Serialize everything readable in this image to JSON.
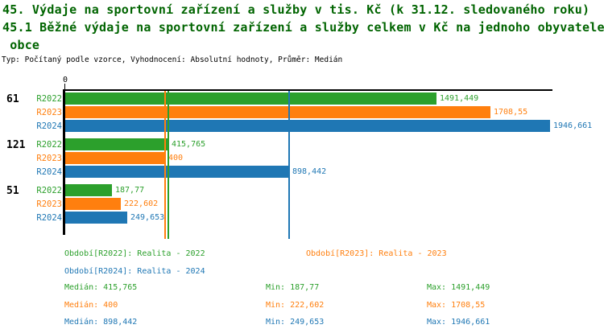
{
  "header": {
    "title_line1": "45. Výdaje na sportovní zařízení a služby v tis. Kč (k 31.12. sledovaného roku)",
    "title_line2": "45.1 Běžné výdaje na sportovní zařízení a služby celkem v Kč na jednoho obyvatele",
    "title_line3": " obce",
    "meta_line": "Typ: Počítaný podle vzorce, Vyhodnocení: Absolutní hodnoty, Průměr: Medián"
  },
  "colors": {
    "title": "#006400",
    "axis": "#000000",
    "series": {
      "R2022": "#2ca02c",
      "R2023": "#ff7f0e",
      "R2024": "#1f77b4"
    }
  },
  "chart_data": {
    "type": "bar",
    "orientation": "horizontal",
    "x_axis": {
      "zero_label": "0",
      "xlim": [
        0,
        1960
      ],
      "grid": false
    },
    "groups": [
      {
        "label": "61",
        "bars": [
          {
            "period": "R2022",
            "value": 1491.449,
            "label": "1491,449"
          },
          {
            "period": "R2023",
            "value": 1708.55,
            "label": "1708,55"
          },
          {
            "period": "R2024",
            "value": 1946.661,
            "label": "1946,661"
          }
        ]
      },
      {
        "label": "121",
        "bars": [
          {
            "period": "R2022",
            "value": 415.765,
            "label": "415,765"
          },
          {
            "period": "R2023",
            "value": 400,
            "label": "400"
          },
          {
            "period": "R2024",
            "value": 898.442,
            "label": "898,442"
          }
        ]
      },
      {
        "label": "51",
        "bars": [
          {
            "period": "R2022",
            "value": 187.77,
            "label": "187,77"
          },
          {
            "period": "R2023",
            "value": 222.602,
            "label": "222,602"
          },
          {
            "period": "R2024",
            "value": 249.653,
            "label": "249,653"
          }
        ]
      }
    ],
    "median_lines": [
      {
        "series": "R2022",
        "value": 415.765
      },
      {
        "series": "R2023",
        "value": 400
      },
      {
        "series": "R2024",
        "value": 898.442
      }
    ]
  },
  "legend": {
    "periods": [
      {
        "series": "R2022",
        "label": "Období[R2022]: Realita - 2022"
      },
      {
        "series": "R2023",
        "label": "Období[R2023]: Realita - 2023"
      },
      {
        "series": "R2024",
        "label": "Období[R2024]: Realita - 2024"
      }
    ],
    "stats": [
      {
        "series": "R2022",
        "median": "Medián: 415,765",
        "min": "Min: 187,77",
        "max": "Max: 1491,449"
      },
      {
        "series": "R2023",
        "median": "Medián: 400",
        "min": "Min: 222,602",
        "max": "Max: 1708,55"
      },
      {
        "series": "R2024",
        "median": "Medián: 898,442",
        "min": "Min: 249,653",
        "max": "Max: 1946,661"
      }
    ]
  }
}
